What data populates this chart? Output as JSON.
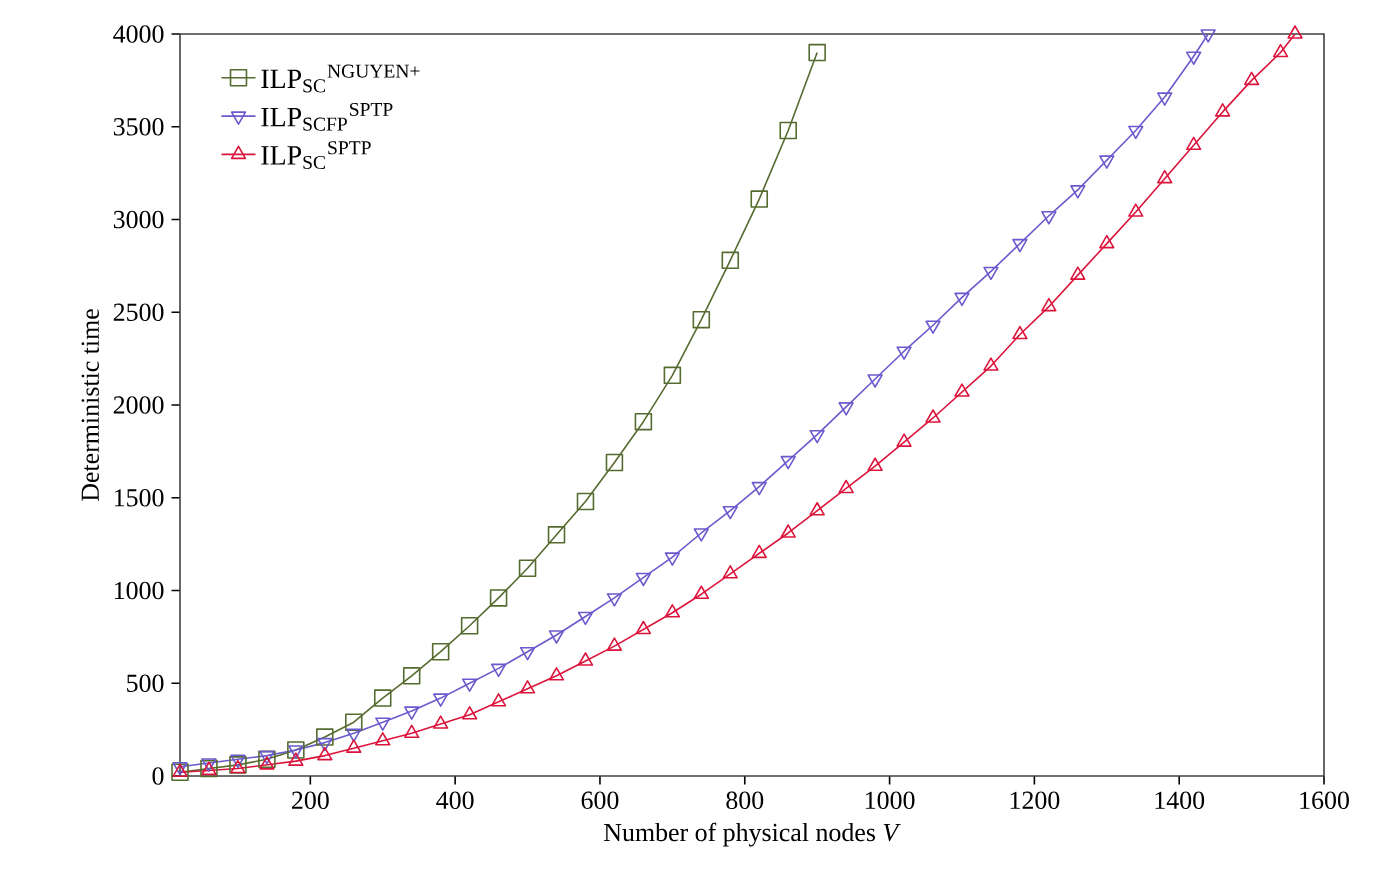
{
  "chart_data": {
    "type": "line",
    "xlabel": "Number of physical nodes *V*",
    "ylabel": "Deterministic time",
    "xlim": [
      20,
      1600
    ],
    "ylim": [
      0,
      4000
    ],
    "xticks": [
      200,
      400,
      600,
      800,
      1000,
      1200,
      1400,
      1600
    ],
    "yticks": [
      0,
      500,
      1000,
      1500,
      2000,
      2500,
      3000,
      3500,
      4000
    ],
    "grid": false,
    "legend": "top left",
    "series": [
      {
        "name": "ILP$_{SC}$$^{NGUYEN+}$",
        "color": "#556b2f",
        "marker": "square",
        "x": [
          20,
          60,
          100,
          140,
          180,
          220,
          260,
          300,
          340,
          380,
          420,
          460,
          500,
          540,
          580,
          620,
          660,
          700,
          740,
          780,
          820,
          860,
          900
        ],
        "values": [
          20,
          40,
          60,
          90,
          140,
          210,
          290,
          420,
          540,
          670,
          810,
          960,
          1120,
          1300,
          1480,
          1690,
          1910,
          2160,
          2460,
          2780,
          3110,
          3480,
          3900
        ]
      },
      {
        "name": "ILP$_{SCFP}$$^{SPTP}$",
        "color": "#6a5acd",
        "marker": "triangle down",
        "x": [
          20,
          60,
          100,
          140,
          180,
          220,
          260,
          300,
          340,
          380,
          420,
          460,
          500,
          540,
          580,
          620,
          660,
          700,
          740,
          780,
          820,
          860,
          900,
          940,
          980,
          1020,
          1060,
          1100,
          1140,
          1180,
          1220,
          1260,
          1300,
          1340,
          1380,
          1420,
          1440
        ],
        "values": [
          50,
          70,
          90,
          110,
          140,
          180,
          230,
          290,
          350,
          420,
          500,
          580,
          670,
          760,
          860,
          960,
          1070,
          1180,
          1310,
          1430,
          1560,
          1700,
          1840,
          1990,
          2140,
          2290,
          2430,
          2580,
          2720,
          2870,
          3020,
          3160,
          3320,
          3480,
          3660,
          3880,
          4000
        ]
      },
      {
        "name": "ILP$_{SC}$$^{SPTP}$",
        "color": "#dc143c",
        "marker": "triangle",
        "x": [
          20,
          60,
          100,
          140,
          180,
          220,
          260,
          300,
          340,
          380,
          420,
          460,
          500,
          540,
          580,
          620,
          660,
          700,
          740,
          780,
          820,
          860,
          900,
          940,
          980,
          1020,
          1060,
          1100,
          1140,
          1180,
          1220,
          1260,
          1300,
          1340,
          1380,
          1420,
          1460,
          1500,
          1540,
          1560
        ],
        "values": [
          20,
          30,
          40,
          60,
          80,
          110,
          150,
          190,
          230,
          280,
          330,
          400,
          470,
          540,
          620,
          700,
          790,
          880,
          980,
          1090,
          1200,
          1310,
          1430,
          1550,
          1670,
          1800,
          1930,
          2070,
          2210,
          2380,
          2530,
          2700,
          2870,
          3040,
          3220,
          3400,
          3580,
          3750,
          3900,
          4000
        ]
      }
    ]
  }
}
